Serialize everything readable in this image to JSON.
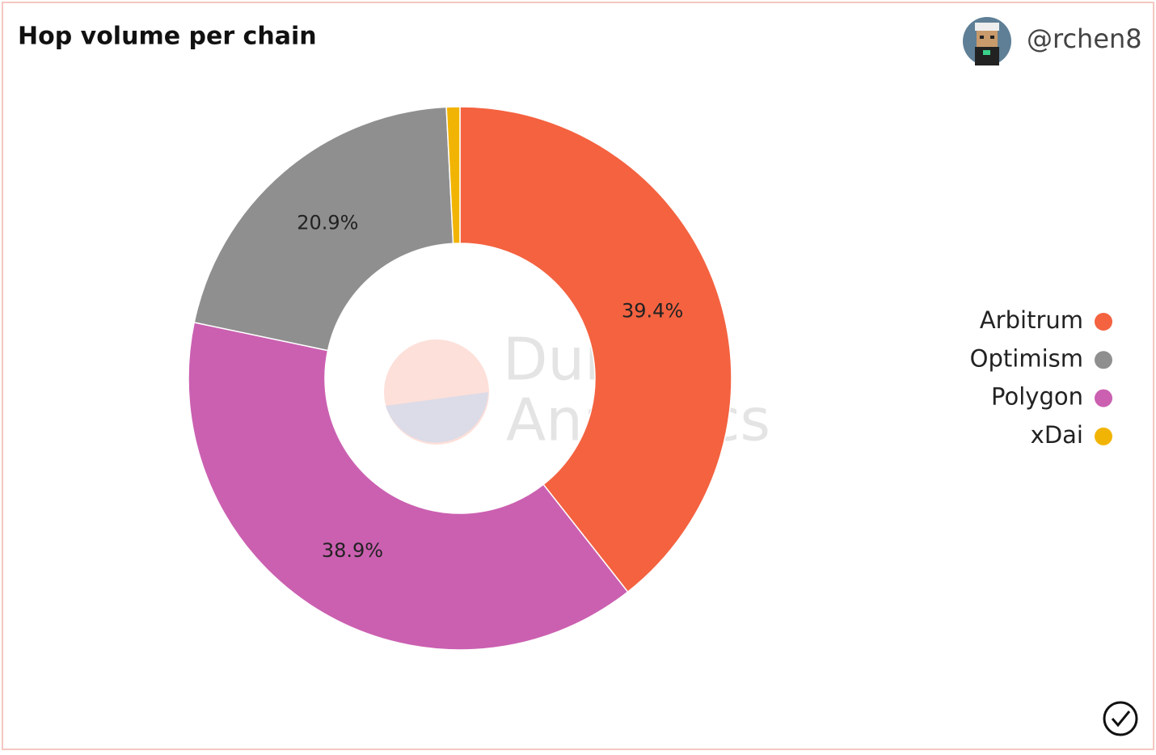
{
  "header": {
    "user": "@rchen8"
  },
  "chart_data": {
    "type": "donut",
    "title": "Hop volume per chain",
    "categories": [
      "Arbitrum",
      "Polygon",
      "Optimism",
      "xDai"
    ],
    "values": [
      39.4,
      38.9,
      20.9,
      0.8
    ],
    "value_labels": [
      "39.4%",
      "38.9%",
      "20.9%",
      null
    ],
    "colors": [
      "#f46240",
      "#cb60b1",
      "#8f8f8f",
      "#f2b404"
    ],
    "legend": [
      "Arbitrum",
      "Optimism",
      "Polygon",
      "xDai"
    ],
    "legend_position": "right",
    "watermark": [
      "Dune",
      "Analytics"
    ]
  }
}
